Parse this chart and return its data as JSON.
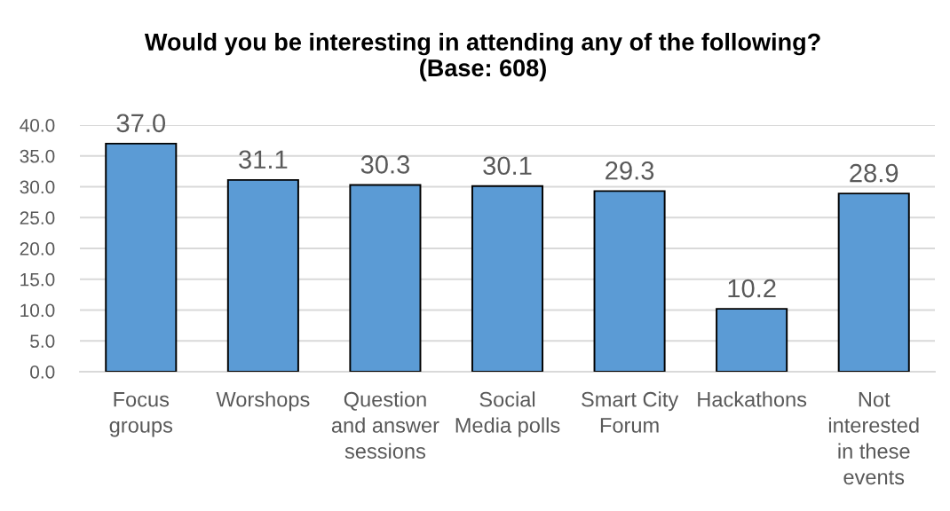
{
  "chart_data": {
    "type": "bar",
    "title": "Would you be interesting in attending any of the following?\n(Base: 608)",
    "categories": [
      "Focus\ngroups",
      "Worshops",
      "Question\nand answer\nsessions",
      "Social\nMedia polls",
      "Smart City\nForum",
      "Hackathons",
      "Not\ninterested\nin these\nevents"
    ],
    "values": [
      37.0,
      31.1,
      30.3,
      30.1,
      29.3,
      10.2,
      28.9
    ],
    "value_labels": [
      "37.0",
      "31.1",
      "30.3",
      "30.1",
      "29.3",
      "10.2",
      "28.9"
    ],
    "color": "#5b9bd5",
    "ylim": [
      0,
      40
    ],
    "yticks": [
      {
        "value": 0,
        "label": "0.0"
      },
      {
        "value": 5,
        "label": "5.0"
      },
      {
        "value": 10,
        "label": "10.0"
      },
      {
        "value": 15,
        "label": "15.0"
      },
      {
        "value": 20,
        "label": "20.0"
      },
      {
        "value": 25,
        "label": "25.0"
      },
      {
        "value": 30,
        "label": "30.0"
      },
      {
        "value": 35,
        "label": "35.0"
      },
      {
        "value": 40,
        "label": "40.0"
      }
    ],
    "grid": "y"
  }
}
